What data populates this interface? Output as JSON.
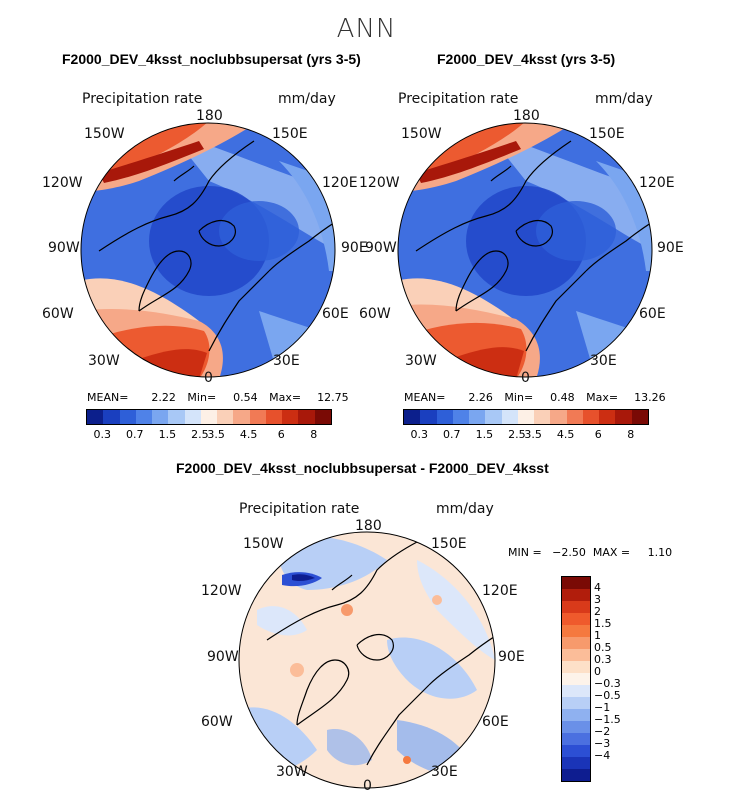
{
  "figure": {
    "title": "ANN"
  },
  "panels": [
    {
      "title": "F2000_DEV_4ksst_noclubbsupersat (yrs 3-5)",
      "variable": "Precipitation rate",
      "units": "mm/day",
      "stats": {
        "mean_label": "MEAN=",
        "mean": "2.22",
        "min_label": "Min=",
        "min": "0.54",
        "max_label": "Max=",
        "max": "12.75"
      }
    },
    {
      "title": "F2000_DEV_4ksst (yrs 3-5)",
      "variable": "Precipitation rate",
      "units": "mm/day",
      "stats": {
        "mean_label": "MEAN=",
        "mean": "2.26",
        "min_label": "Min=",
        "min": "0.48",
        "max_label": "Max=",
        "max": "13.26"
      }
    }
  ],
  "diff_panel": {
    "title": "F2000_DEV_4ksst_noclubbsupersat - F2000_DEV_4ksst",
    "variable": "Precipitation rate",
    "units": "mm/day",
    "minmax": "MIN =   −2.50  MAX =     1.10"
  },
  "longitude_labels": {
    "top": "180",
    "ul": "150W",
    "ur": "150E",
    "l1": "120W",
    "r1": "120E",
    "l2": "90W",
    "r2": "90E",
    "l3": "60W",
    "r3": "60E",
    "bl": "30W",
    "br": "30E",
    "bottom": "0"
  },
  "colorbar": {
    "colors": [
      "#0c1f8c",
      "#1a3fbf",
      "#2e5fd8",
      "#4f82e8",
      "#7aa6f0",
      "#a8c8f6",
      "#d4e4fa",
      "#fdf0e6",
      "#fad0b8",
      "#f6a888",
      "#f17a55",
      "#e7512c",
      "#cc2e12",
      "#a8180a",
      "#7a0a05"
    ],
    "ticks": [
      "0.3",
      "0.7",
      "1.5",
      "2.5",
      "3.5",
      "4.5",
      "6",
      "8"
    ]
  },
  "diff_colorbar": {
    "colors": [
      "#7a0a05",
      "#b11d0c",
      "#d93a1a",
      "#ef5a2c",
      "#f5793f",
      "#f79a6c",
      "#fbbd99",
      "#fde0c8",
      "#fdf3ea",
      "#dce7fa",
      "#b8cff6",
      "#8fb1f0",
      "#6a90e8",
      "#4b70e0",
      "#2c4fd4",
      "#1a34b8",
      "#0e1d90"
    ],
    "ticks": [
      "4",
      "3",
      "2",
      "1.5",
      "1",
      "0.5",
      "0.3",
      "0",
      "−0.3",
      "−0.5",
      "−1",
      "−1.5",
      "−2",
      "−3",
      "−4"
    ]
  },
  "colors": {
    "ocean_blue": "#3f6fe0",
    "deep_blue": "#2147c8",
    "warm_red": "#ec5a30",
    "diff_bg": "#fbe6d6"
  }
}
